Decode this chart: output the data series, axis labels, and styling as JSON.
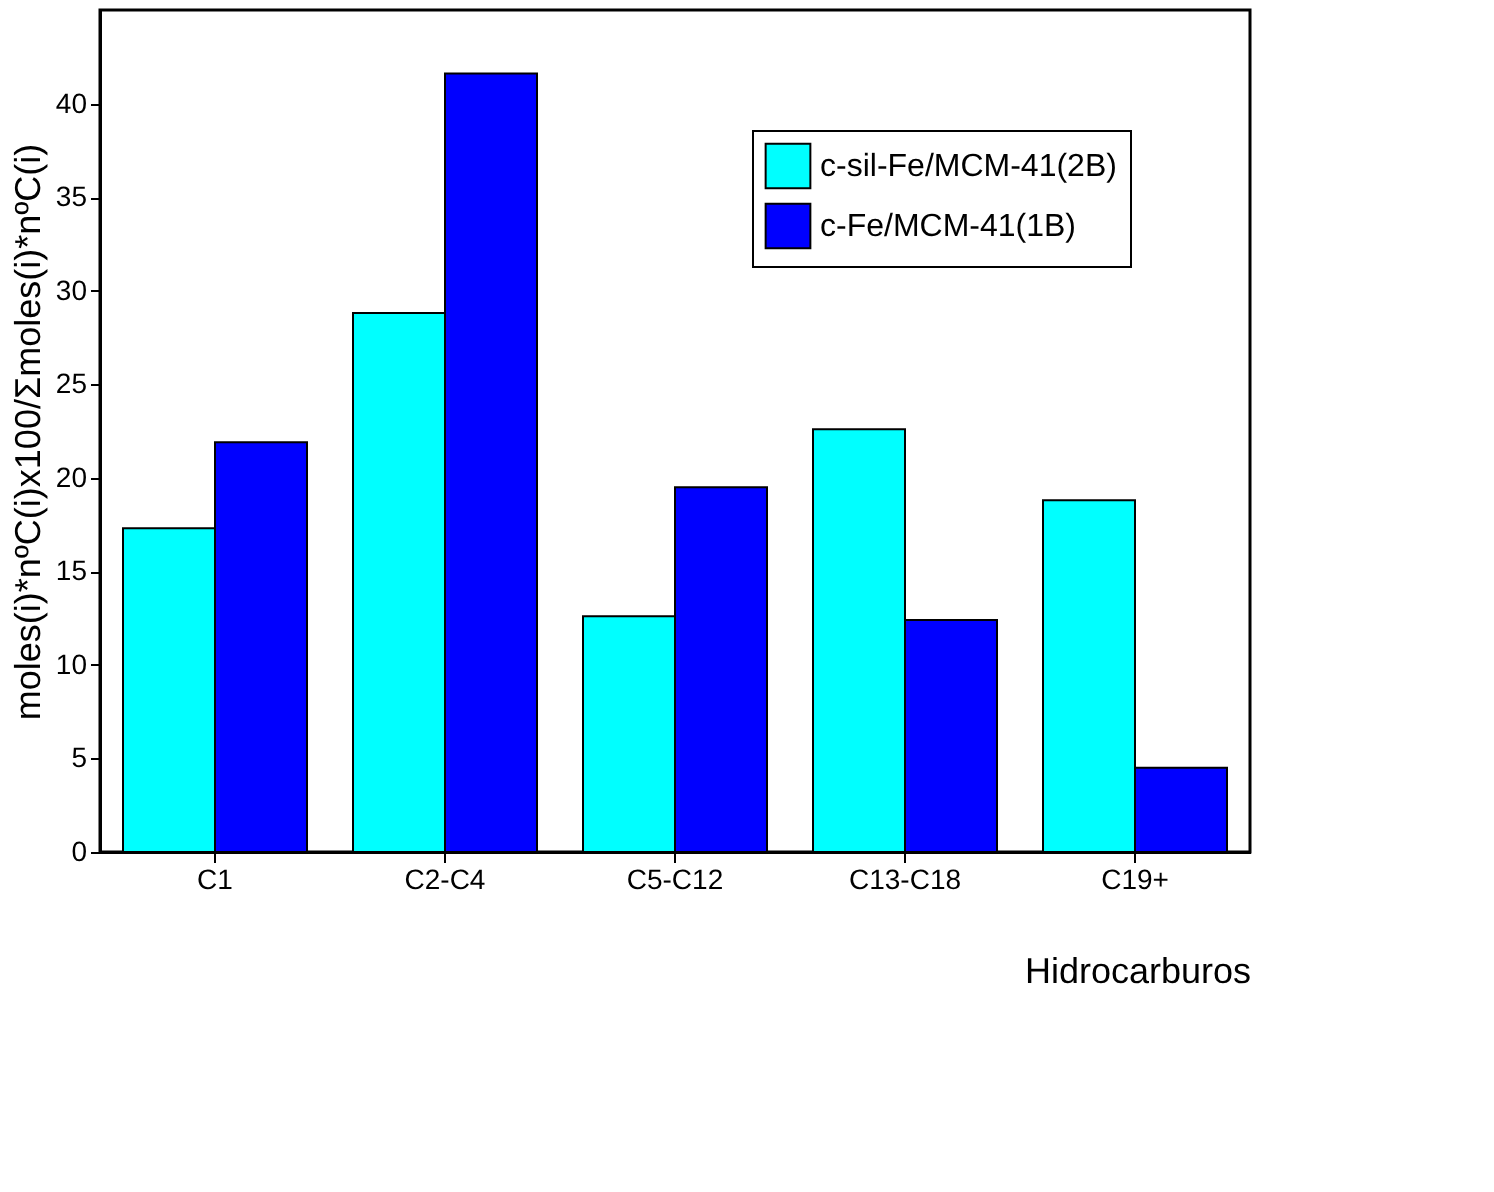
{
  "chart_data": {
    "type": "bar",
    "xlabel": "Hidrocarburos",
    "ylabel": "moles(i)*nºC(i)x100/Σmoles(i)*nºC(i)",
    "categories": [
      "C1",
      "C2-C4",
      "C5-C12",
      "C13-C18",
      "C19+"
    ],
    "series": [
      {
        "name": "c-sil-Fe/MCM-41(2B)",
        "color": "#00ffff",
        "values": [
          17.3,
          28.8,
          12.6,
          22.6,
          18.8
        ]
      },
      {
        "name": "c-Fe/MCM-41(1B)",
        "color": "#0000ff",
        "values": [
          21.9,
          41.6,
          19.5,
          12.4,
          4.5
        ]
      }
    ],
    "ylim": [
      0,
      45
    ],
    "yticks": [
      0,
      5,
      10,
      15,
      20,
      25,
      30,
      35,
      40
    ],
    "grid": false,
    "legend": "top right"
  }
}
